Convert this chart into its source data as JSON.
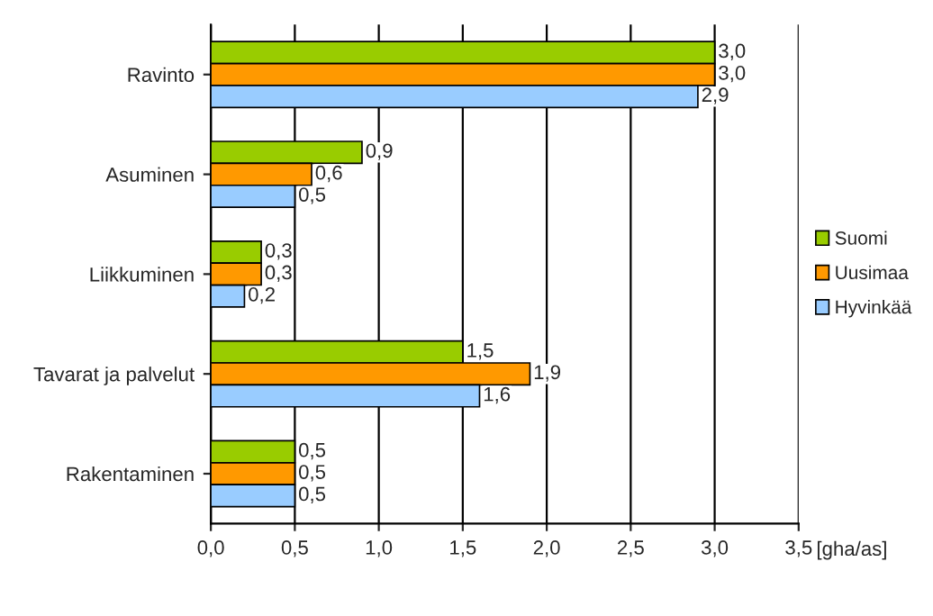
{
  "chart_data": {
    "type": "bar",
    "orientation": "horizontal",
    "categories": [
      "Ravinto",
      "Asuminen",
      "Liikkuminen",
      "Tavarat ja palvelut",
      "Rakentaminen"
    ],
    "series": [
      {
        "name": "Suomi",
        "color": "#99cc00",
        "values": [
          3.0,
          0.9,
          0.3,
          1.5,
          0.5
        ],
        "value_labels": [
          "3,0",
          "0,9",
          "0,3",
          "1,5",
          "0,5"
        ]
      },
      {
        "name": "Uusimaa",
        "color": "#ff9900",
        "values": [
          3.0,
          0.6,
          0.3,
          1.9,
          0.5
        ],
        "value_labels": [
          "3,0",
          "0,6",
          "0,3",
          "1,9",
          "0,5"
        ]
      },
      {
        "name": "Hyvinkää",
        "color": "#99ccff",
        "values": [
          2.9,
          0.5,
          0.2,
          1.6,
          0.5
        ],
        "value_labels": [
          "2,9",
          "0,5",
          "0,2",
          "1,6",
          "0,5"
        ]
      }
    ],
    "xlabel": "[gha/as]",
    "xlim": [
      0,
      3.5
    ],
    "xticks": [
      {
        "value": 0,
        "label": "0,0"
      },
      {
        "value": 0.5,
        "label": "0,5"
      },
      {
        "value": 1.0,
        "label": "1,0"
      },
      {
        "value": 1.5,
        "label": "1,5"
      },
      {
        "value": 2.0,
        "label": "2,0"
      },
      {
        "value": 2.5,
        "label": "2,5"
      },
      {
        "value": 3.0,
        "label": "3,0"
      },
      {
        "value": 3.5,
        "label": "3,5"
      }
    ],
    "grid": "x",
    "legend": "right"
  }
}
